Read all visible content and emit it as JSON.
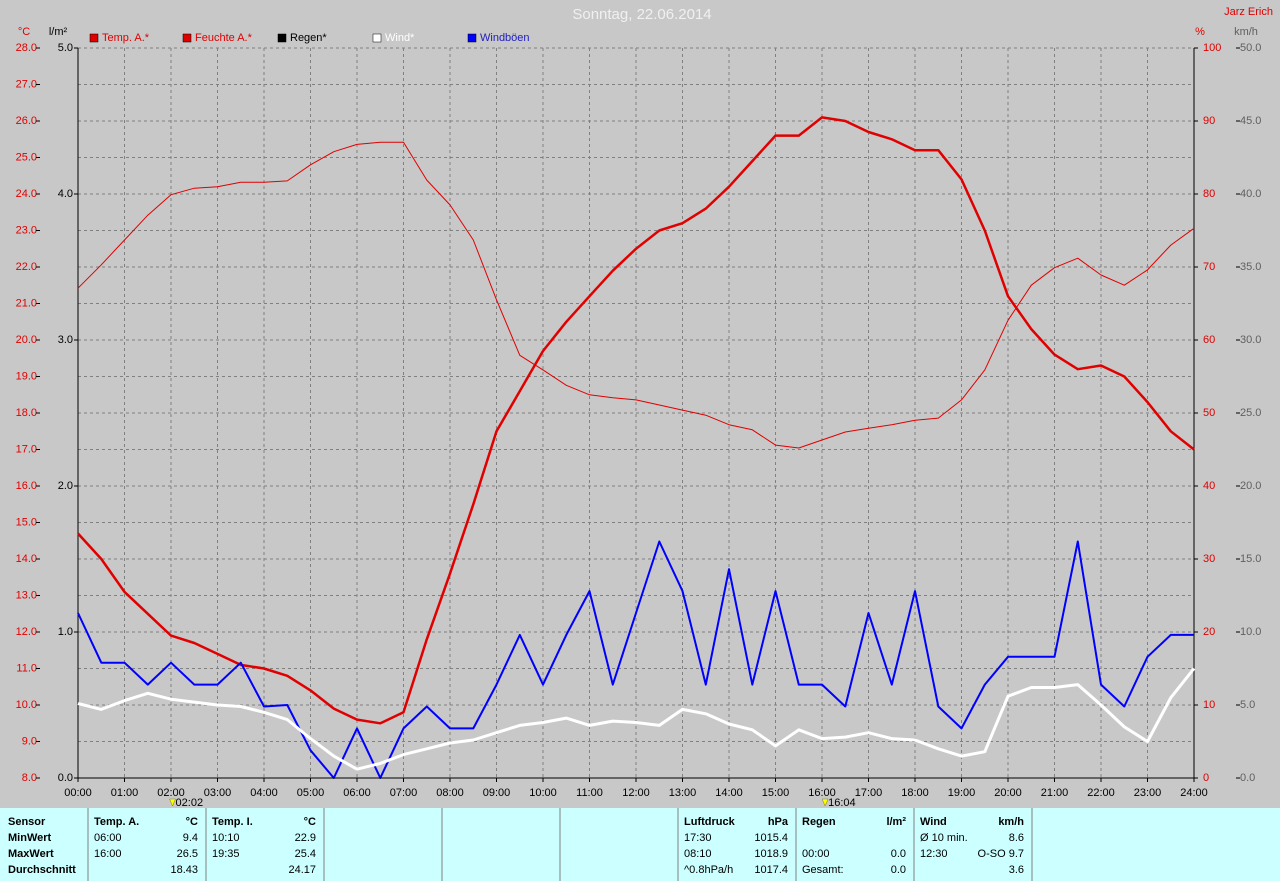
{
  "chart_data": {
    "type": "line",
    "title": "Sonntag, 22.06.2014",
    "author": "Jarz Erich",
    "xlim": [
      0,
      24
    ],
    "xticks": [
      {
        "value": 0,
        "label": "00:00"
      },
      {
        "value": 1,
        "label": "01:00"
      },
      {
        "value": 2,
        "label": "02:00"
      },
      {
        "value": 3,
        "label": "03:00"
      },
      {
        "value": 4,
        "label": "04:00"
      },
      {
        "value": 5,
        "label": "05:00"
      },
      {
        "value": 6,
        "label": "06:00"
      },
      {
        "value": 7,
        "label": "07:00"
      },
      {
        "value": 8,
        "label": "08:00"
      },
      {
        "value": 9,
        "label": "09:00"
      },
      {
        "value": 10,
        "label": "10:00"
      },
      {
        "value": 11,
        "label": "11:00"
      },
      {
        "value": 12,
        "label": "12:00"
      },
      {
        "value": 13,
        "label": "13:00"
      },
      {
        "value": 14,
        "label": "14:00"
      },
      {
        "value": 15,
        "label": "15:00"
      },
      {
        "value": 16,
        "label": "16:00"
      },
      {
        "value": 17,
        "label": "17:00"
      },
      {
        "value": 18,
        "label": "18:00"
      },
      {
        "value": 19,
        "label": "19:00"
      },
      {
        "value": 20,
        "label": "20:00"
      },
      {
        "value": 21,
        "label": "21:00"
      },
      {
        "value": 22,
        "label": "22:00"
      },
      {
        "value": 23,
        "label": "23:00"
      },
      {
        "value": 24,
        "label": "24:00"
      }
    ],
    "grid": true,
    "axes": [
      {
        "label": "°C",
        "color": "#e00000",
        "lim": [
          8,
          28
        ],
        "ticks": [
          {
            "value": 8,
            "label": "8.0"
          },
          {
            "value": 9,
            "label": "9.0"
          },
          {
            "value": 10,
            "label": "10.0"
          },
          {
            "value": 11,
            "label": "11.0"
          },
          {
            "value": 12,
            "label": "12.0"
          },
          {
            "value": 13,
            "label": "13.0"
          },
          {
            "value": 14,
            "label": "14.0"
          },
          {
            "value": 15,
            "label": "15.0"
          },
          {
            "value": 16,
            "label": "16.0"
          },
          {
            "value": 17,
            "label": "17.0"
          },
          {
            "value": 18,
            "label": "18.0"
          },
          {
            "value": 19,
            "label": "19.0"
          },
          {
            "value": 20,
            "label": "20.0"
          },
          {
            "value": 21,
            "label": "21.0"
          },
          {
            "value": 22,
            "label": "22.0"
          },
          {
            "value": 23,
            "label": "23.0"
          },
          {
            "value": 24,
            "label": "24.0"
          },
          {
            "value": 25,
            "label": "25.0"
          },
          {
            "value": 26,
            "label": "26.0"
          },
          {
            "value": 27,
            "label": "27.0"
          },
          {
            "value": 28,
            "label": "28.0"
          }
        ]
      },
      {
        "label": "l/m²",
        "color": "#000000",
        "lim": [
          0,
          5
        ],
        "ticks": [
          {
            "value": 0,
            "label": "0.0"
          },
          {
            "value": 1,
            "label": "1.0"
          },
          {
            "value": 2,
            "label": "2.0"
          },
          {
            "value": 3,
            "label": "3.0"
          },
          {
            "value": 4,
            "label": "4.0"
          },
          {
            "value": 5,
            "label": "5.0"
          }
        ]
      },
      {
        "label": "%",
        "color": "#e00000",
        "lim": [
          0,
          100
        ],
        "ticks": [
          0,
          10,
          20,
          30,
          40,
          50,
          60,
          70,
          80,
          90,
          100
        ]
      },
      {
        "label": "km/h",
        "color": "#606060",
        "lim": [
          0,
          50
        ],
        "ticks": [
          {
            "value": 0,
            "label": "0.0"
          },
          {
            "value": 5,
            "label": "5.0"
          },
          {
            "value": 10,
            "label": "10.0"
          },
          {
            "value": 15,
            "label": "15.0"
          },
          {
            "value": 20,
            "label": "20.0"
          },
          {
            "value": 25,
            "label": "25.0"
          },
          {
            "value": 30,
            "label": "30.0"
          },
          {
            "value": 35,
            "label": "35.0"
          },
          {
            "value": 40,
            "label": "40.0"
          },
          {
            "value": 45,
            "label": "45.0"
          },
          {
            "value": 50,
            "label": "50.0"
          }
        ]
      }
    ],
    "x": [
      0,
      0.5,
      1,
      1.5,
      2,
      2.5,
      3,
      3.5,
      4,
      4.5,
      5,
      5.5,
      6,
      6.5,
      7,
      7.5,
      8,
      8.5,
      9,
      9.5,
      10,
      10.5,
      11,
      11.5,
      12,
      12.5,
      13,
      13.5,
      14,
      14.5,
      15,
      15.5,
      16,
      16.5,
      17,
      17.5,
      18,
      18.5,
      19,
      19.5,
      20,
      20.5,
      21,
      21.5,
      22,
      22.5,
      23,
      23.5,
      24
    ],
    "series": [
      {
        "name": "Temp. A.*",
        "color": "#e00000",
        "width": 2.5,
        "axis": 0,
        "values": [
          14.7,
          14.0,
          13.1,
          12.5,
          11.9,
          11.7,
          11.4,
          11.1,
          11.0,
          10.8,
          10.4,
          9.9,
          9.6,
          9.5,
          9.8,
          11.8,
          13.6,
          15.5,
          17.5,
          18.6,
          19.7,
          20.5,
          21.2,
          21.9,
          22.5,
          23.0,
          23.2,
          23.6,
          24.2,
          24.9,
          25.6,
          25.6,
          26.1,
          26.0,
          25.7,
          25.5,
          25.2,
          25.2,
          24.4,
          23.0,
          21.2,
          20.3,
          19.6,
          19.2,
          19.3,
          19.0,
          18.3,
          17.5,
          17.0
        ]
      },
      {
        "name": "Feuchte A.*",
        "color": "#e00000",
        "width": 1,
        "axis": 2,
        "values": [
          67.1,
          70.3,
          73.7,
          77.1,
          79.9,
          80.8,
          81.0,
          81.6,
          81.6,
          81.8,
          84.0,
          85.8,
          86.8,
          87.1,
          87.1,
          81.9,
          78.5,
          73.7,
          65.5,
          57.9,
          55.9,
          53.8,
          52.5,
          52.1,
          51.8,
          51.1,
          50.4,
          49.7,
          48.4,
          47.7,
          45.6,
          45.2,
          46.3,
          47.4,
          47.9,
          48.4,
          49.0,
          49.3,
          51.8,
          55.9,
          62.7,
          67.5,
          69.9,
          71.2,
          68.9,
          67.5,
          69.6,
          73.0,
          75.3
        ]
      },
      {
        "name": "Regen*",
        "color": "#000000",
        "width": 1,
        "axis": 1,
        "values": [
          0,
          0,
          0,
          0,
          0,
          0,
          0,
          0,
          0,
          0,
          0,
          0,
          0,
          0,
          0,
          0,
          0,
          0,
          0,
          0,
          0,
          0,
          0,
          0,
          0,
          0,
          0,
          0,
          0,
          0,
          0,
          0,
          0,
          0,
          0,
          0,
          0,
          0,
          0,
          0,
          0,
          0,
          0,
          0,
          0,
          0,
          0,
          0,
          0
        ]
      },
      {
        "name": "Wind*",
        "color": "#ffffff",
        "width": 3,
        "axis": 3,
        "values": [
          5.1,
          4.7,
          5.3,
          5.8,
          5.4,
          5.2,
          5.0,
          4.9,
          4.5,
          4.0,
          2.7,
          1.5,
          0.6,
          1.0,
          1.6,
          2.0,
          2.4,
          2.6,
          3.1,
          3.6,
          3.8,
          4.1,
          3.6,
          3.9,
          3.8,
          3.6,
          4.7,
          4.4,
          3.7,
          3.3,
          2.2,
          3.3,
          2.7,
          2.8,
          3.1,
          2.7,
          2.6,
          2.0,
          1.5,
          1.8,
          5.6,
          6.2,
          6.2,
          6.4,
          5.0,
          3.5,
          2.5,
          5.5,
          7.5
        ]
      },
      {
        "name": "Windböen",
        "color": "#0000ff",
        "width": 2,
        "axis": 3,
        "values": [
          11.3,
          7.9,
          7.9,
          6.4,
          7.9,
          6.4,
          6.4,
          7.9,
          4.9,
          5.0,
          1.9,
          0.0,
          3.4,
          0.0,
          3.4,
          4.9,
          3.4,
          3.4,
          6.4,
          9.8,
          6.4,
          9.8,
          12.8,
          6.4,
          11.3,
          16.2,
          12.8,
          6.4,
          14.3,
          6.4,
          12.8,
          6.4,
          6.4,
          4.9,
          11.3,
          6.4,
          12.8,
          4.9,
          3.4,
          6.4,
          8.3,
          8.3,
          8.3,
          16.2,
          6.4,
          4.9,
          8.3,
          9.8,
          9.8
        ]
      }
    ],
    "markers": [
      {
        "x": 2.033,
        "label": "02:02"
      },
      {
        "x": 16.067,
        "label": "16:04"
      }
    ]
  },
  "table": {
    "header": [
      [
        "Sensor"
      ],
      [
        "Temp. A.",
        "°C"
      ],
      [
        "Temp. I.",
        "°C"
      ],
      null,
      null,
      null,
      [
        "Luftdruck",
        "hPa"
      ],
      [
        "Regen",
        "l/m²"
      ],
      [
        "Wind",
        "km/h"
      ]
    ],
    "rows": [
      [
        [
          "MinWert"
        ],
        [
          "06:00",
          "9.4"
        ],
        [
          "10:10",
          "22.9"
        ],
        null,
        null,
        null,
        [
          "17:30",
          "1015.4"
        ],
        null,
        [
          "Ø 10 min.",
          "8.6"
        ]
      ],
      [
        [
          "MaxWert"
        ],
        [
          "16:00",
          "26.5"
        ],
        [
          "19:35",
          "25.4"
        ],
        null,
        null,
        null,
        [
          "08:10",
          "1018.9"
        ],
        [
          "00:00",
          "0.0"
        ],
        [
          "12:30",
          "O-SO 9.7"
        ]
      ],
      [
        [
          "Durchschnitt"
        ],
        [
          "18.43"
        ],
        [
          "24.17"
        ],
        null,
        null,
        null,
        [
          "^0.8hPa/h",
          "1017.4"
        ],
        [
          "Gesamt:",
          "0.0"
        ],
        [
          "3.6"
        ]
      ]
    ]
  }
}
